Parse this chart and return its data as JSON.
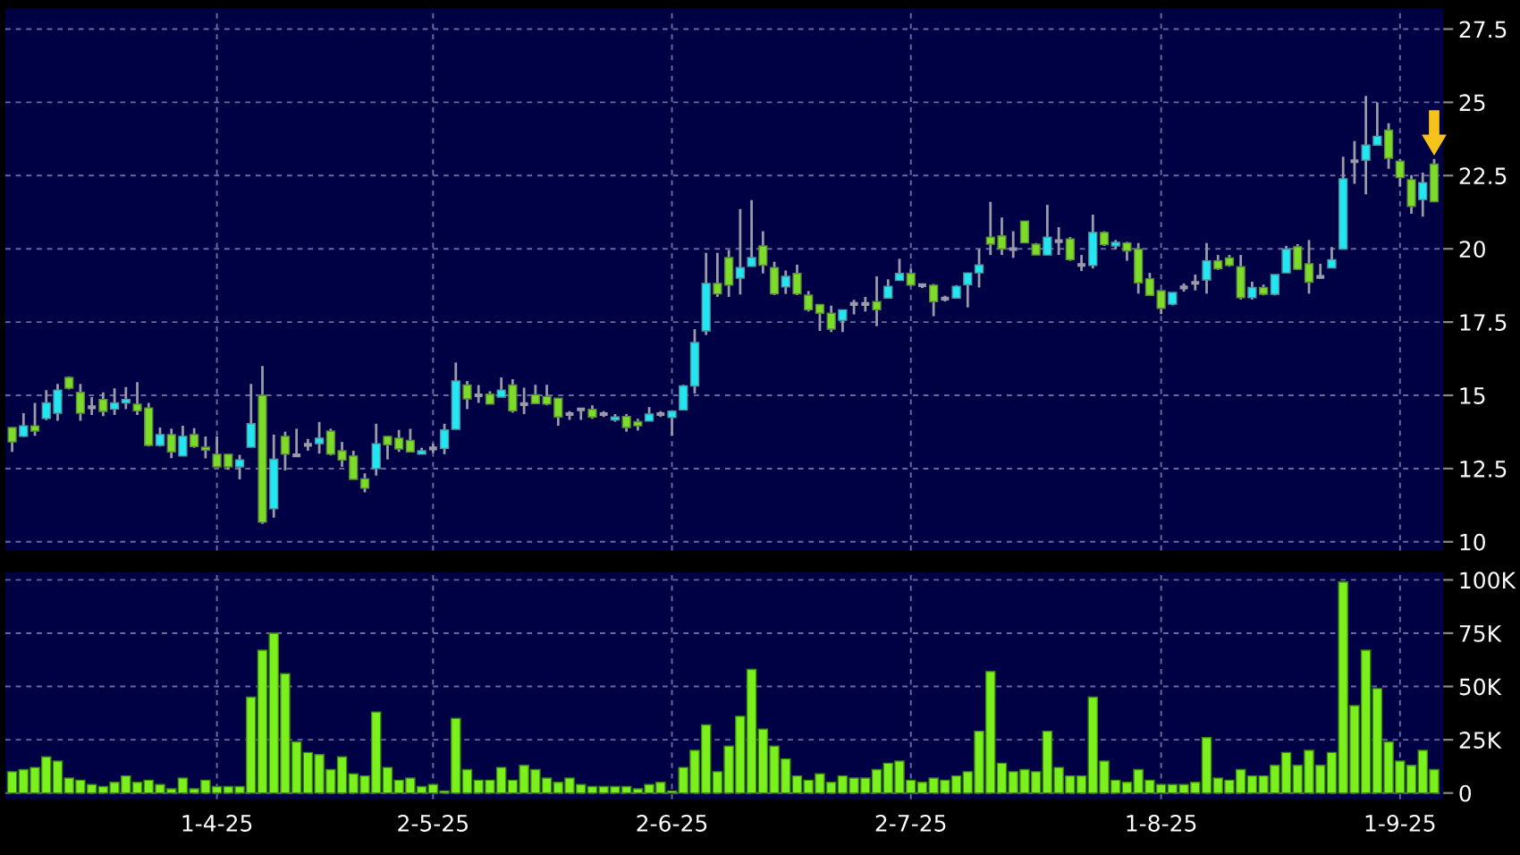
{
  "chart_data": [
    {
      "type": "candlestick",
      "categories": [
        null,
        null,
        null,
        null,
        null,
        null,
        null,
        null,
        null,
        null,
        null,
        null,
        null,
        null,
        null,
        null,
        null,
        null,
        null,
        null,
        null,
        null,
        null,
        null,
        null,
        null,
        null,
        null,
        null,
        null,
        null,
        null,
        null,
        null,
        null,
        null,
        null,
        null,
        null,
        null,
        null,
        null,
        null,
        null,
        null,
        null,
        null,
        null,
        null,
        null,
        null,
        null,
        null,
        null,
        null,
        null,
        null,
        null,
        null,
        null,
        null,
        null,
        null,
        null,
        null,
        null,
        null,
        null,
        null,
        null,
        null,
        null,
        null,
        null,
        null,
        null,
        null,
        null,
        null,
        null,
        null,
        null,
        null,
        null,
        null,
        null,
        null,
        null,
        null,
        null,
        null,
        null,
        null,
        null,
        null,
        null,
        null,
        null,
        null,
        null,
        null,
        null,
        null,
        null,
        null,
        null,
        null,
        null,
        null,
        null,
        null,
        null,
        null,
        null,
        null,
        null,
        null,
        null,
        null,
        null,
        null,
        null,
        null,
        null,
        null,
        null
      ],
      "ohlc": [
        [
          13.9,
          13.9,
          13.07,
          13.41
        ],
        [
          13.6,
          14.39,
          13.58,
          13.96
        ],
        [
          13.96,
          14.74,
          13.62,
          13.78
        ],
        [
          14.21,
          15.18,
          14.15,
          14.74
        ],
        [
          14.39,
          15.39,
          14.13,
          15.18
        ],
        [
          15.61,
          15.65,
          15.2,
          15.24
        ],
        [
          15.1,
          15.39,
          14.13,
          14.39
        ],
        [
          14.59,
          14.94,
          14.33,
          14.59
        ],
        [
          14.86,
          15.1,
          14.29,
          14.45
        ],
        [
          14.53,
          15.24,
          14.33,
          14.74
        ],
        [
          14.74,
          15.28,
          14.53,
          14.86
        ],
        [
          14.7,
          15.45,
          14.33,
          14.47
        ],
        [
          14.57,
          14.74,
          13.25,
          13.29
        ],
        [
          13.29,
          13.9,
          13.25,
          13.66
        ],
        [
          13.66,
          13.86,
          12.86,
          13.07
        ],
        [
          12.93,
          13.96,
          12.93,
          13.6
        ],
        [
          13.66,
          13.88,
          13.21,
          13.25
        ],
        [
          13.23,
          13.6,
          12.85,
          13.13
        ],
        [
          12.99,
          13.6,
          12.54,
          12.56
        ],
        [
          12.99,
          12.99,
          12.46,
          12.56
        ],
        [
          12.56,
          12.97,
          12.13,
          12.8
        ],
        [
          13.23,
          15.39,
          13.23,
          14.03
        ],
        [
          15.0,
          16.0,
          10.61,
          10.67
        ],
        [
          11.13,
          13.66,
          10.83,
          12.82
        ],
        [
          13.6,
          13.76,
          12.44,
          12.99
        ],
        [
          12.95,
          13.86,
          12.91,
          12.95
        ],
        [
          13.31,
          13.51,
          13.11,
          13.31
        ],
        [
          13.35,
          14.09,
          13.01,
          13.54
        ],
        [
          13.78,
          13.86,
          12.95,
          12.99
        ],
        [
          13.11,
          13.41,
          12.56,
          12.79
        ],
        [
          12.93,
          13.11,
          12.13,
          12.13
        ],
        [
          12.15,
          12.34,
          11.69,
          11.83
        ],
        [
          12.5,
          14.03,
          12.26,
          13.35
        ],
        [
          13.6,
          13.6,
          12.81,
          13.31
        ],
        [
          13.54,
          13.82,
          13.07,
          13.17
        ],
        [
          13.46,
          13.86,
          13.07,
          13.07
        ],
        [
          12.99,
          13.21,
          12.99,
          13.11
        ],
        [
          13.19,
          13.35,
          13.03,
          13.19
        ],
        [
          13.19,
          14.03,
          12.99,
          13.82
        ],
        [
          13.84,
          16.12,
          13.84,
          15.49
        ],
        [
          15.35,
          15.49,
          14.53,
          14.88
        ],
        [
          15.0,
          15.35,
          14.74,
          15.0
        ],
        [
          15.04,
          15.14,
          14.7,
          14.7
        ],
        [
          14.94,
          15.61,
          14.94,
          15.18
        ],
        [
          15.35,
          15.55,
          14.41,
          14.47
        ],
        [
          14.7,
          15.26,
          14.36,
          14.7
        ],
        [
          15.02,
          15.36,
          14.72,
          14.72
        ],
        [
          14.96,
          15.36,
          14.66,
          14.7
        ],
        [
          14.9,
          14.9,
          13.96,
          14.26
        ],
        [
          14.36,
          14.46,
          14.16,
          14.36
        ],
        [
          14.52,
          14.56,
          14.16,
          14.52
        ],
        [
          14.52,
          14.66,
          14.2,
          14.26
        ],
        [
          14.36,
          14.46,
          14.26,
          14.36
        ],
        [
          14.16,
          14.36,
          14.1,
          14.26
        ],
        [
          14.28,
          14.36,
          13.76,
          13.9
        ],
        [
          14.1,
          14.2,
          13.8,
          13.96
        ],
        [
          14.12,
          14.6,
          14.12,
          14.36
        ],
        [
          14.36,
          14.46,
          14.26,
          14.36
        ],
        [
          14.24,
          14.46,
          13.62,
          14.46
        ],
        [
          14.5,
          15.36,
          14.5,
          15.32
        ],
        [
          15.32,
          17.26,
          15.06,
          16.8
        ],
        [
          17.2,
          19.86,
          17.06,
          18.82
        ],
        [
          18.82,
          19.86,
          18.36,
          18.46
        ],
        [
          19.7,
          19.96,
          18.36,
          18.76
        ],
        [
          19.0,
          21.36,
          18.44,
          19.36
        ],
        [
          19.4,
          21.66,
          19.4,
          19.7
        ],
        [
          20.1,
          20.6,
          19.16,
          19.44
        ],
        [
          19.36,
          19.56,
          18.42,
          18.46
        ],
        [
          18.7,
          19.26,
          18.46,
          19.06
        ],
        [
          19.16,
          19.46,
          18.42,
          18.46
        ],
        [
          18.42,
          18.56,
          17.86,
          17.92
        ],
        [
          18.1,
          18.1,
          17.2,
          17.8
        ],
        [
          17.8,
          18.06,
          17.16,
          17.26
        ],
        [
          17.56,
          17.92,
          17.16,
          17.92
        ],
        [
          18.12,
          18.26,
          17.76,
          18.12
        ],
        [
          18.12,
          18.36,
          17.86,
          18.12
        ],
        [
          18.2,
          19.06,
          17.36,
          17.92
        ],
        [
          18.32,
          18.96,
          18.32,
          18.72
        ],
        [
          18.92,
          19.66,
          18.92,
          19.16
        ],
        [
          19.16,
          19.32,
          18.72,
          18.76
        ],
        [
          18.76,
          18.8,
          18.66,
          18.76
        ],
        [
          18.76,
          18.8,
          17.7,
          18.2
        ],
        [
          18.3,
          18.4,
          18.2,
          18.3
        ],
        [
          18.32,
          18.76,
          18.3,
          18.72
        ],
        [
          18.78,
          19.18,
          18.0,
          19.18
        ],
        [
          19.18,
          19.99,
          18.68,
          19.45
        ],
        [
          20.4,
          21.6,
          19.79,
          20.16
        ],
        [
          20.44,
          21.07,
          19.79,
          19.99
        ],
        [
          19.99,
          20.6,
          19.69,
          19.99
        ],
        [
          20.95,
          20.95,
          20.2,
          20.2
        ],
        [
          20.16,
          20.2,
          19.79,
          19.79
        ],
        [
          19.79,
          21.5,
          19.79,
          20.4
        ],
        [
          20.26,
          20.74,
          19.79,
          20.26
        ],
        [
          20.34,
          20.4,
          19.59,
          19.63
        ],
        [
          19.45,
          19.79,
          19.24,
          19.45
        ],
        [
          19.43,
          21.17,
          19.33,
          20.56
        ],
        [
          20.56,
          20.6,
          20.1,
          20.14
        ],
        [
          20.1,
          20.3,
          19.99,
          20.22
        ],
        [
          20.2,
          20.24,
          19.59,
          19.93
        ],
        [
          19.99,
          20.2,
          18.47,
          18.84
        ],
        [
          18.98,
          19.18,
          18.41,
          18.41
        ],
        [
          18.57,
          18.57,
          17.77,
          17.97
        ],
        [
          18.11,
          18.51,
          18.07,
          18.51
        ],
        [
          18.68,
          18.82,
          18.54,
          18.68
        ],
        [
          18.84,
          19.12,
          18.58,
          18.84
        ],
        [
          18.94,
          20.2,
          18.47,
          19.59
        ],
        [
          19.59,
          19.79,
          19.28,
          19.32
        ],
        [
          19.69,
          19.79,
          19.39,
          19.43
        ],
        [
          19.39,
          19.79,
          18.27,
          18.33
        ],
        [
          18.33,
          18.88,
          18.27,
          18.68
        ],
        [
          18.68,
          18.78,
          18.41,
          18.45
        ],
        [
          18.45,
          19.12,
          18.41,
          19.12
        ],
        [
          19.18,
          20.1,
          19.18,
          19.99
        ],
        [
          20.07,
          20.16,
          19.28,
          19.3
        ],
        [
          19.49,
          20.3,
          18.47,
          18.86
        ],
        [
          19.04,
          19.49,
          18.98,
          19.04
        ],
        [
          19.35,
          20.06,
          19.35,
          19.63
        ],
        [
          19.99,
          23.14,
          19.99,
          22.39
        ],
        [
          22.99,
          23.68,
          22.22,
          22.99
        ],
        [
          23.03,
          25.22,
          21.86,
          23.54
        ],
        [
          23.54,
          25.0,
          23.54,
          23.84
        ],
        [
          24.05,
          24.29,
          22.73,
          23.09
        ],
        [
          22.99,
          23.07,
          22.12,
          22.43
        ],
        [
          22.36,
          22.52,
          21.2,
          21.45
        ],
        [
          21.68,
          22.6,
          21.1,
          22.26
        ],
        [
          22.89,
          23.07,
          21.61,
          21.61
        ]
      ],
      "ylim": [
        9.7,
        28.2
      ],
      "yticks": [
        10,
        12.5,
        15,
        17.5,
        20,
        22.5,
        25,
        27.5
      ],
      "grid": true,
      "tick_labels": "y"
    },
    {
      "type": "bar",
      "categories": [
        null,
        null,
        null,
        null,
        null,
        null,
        null,
        null,
        null,
        null,
        null,
        null,
        null,
        null,
        null,
        null,
        null,
        null,
        "1-4-25",
        null,
        null,
        null,
        null,
        null,
        null,
        null,
        null,
        null,
        null,
        null,
        null,
        null,
        null,
        null,
        null,
        null,
        null,
        "2-5-25",
        null,
        null,
        null,
        null,
        null,
        null,
        null,
        null,
        null,
        null,
        null,
        null,
        null,
        null,
        null,
        null,
        null,
        null,
        null,
        null,
        "2-6-25",
        null,
        null,
        null,
        null,
        null,
        null,
        null,
        null,
        null,
        null,
        null,
        null,
        null,
        null,
        null,
        null,
        null,
        null,
        null,
        null,
        "2-7-25",
        null,
        null,
        null,
        null,
        null,
        null,
        null,
        null,
        null,
        null,
        null,
        null,
        null,
        null,
        null,
        null,
        null,
        null,
        null,
        null,
        null,
        "1-8-25",
        null,
        null,
        null,
        null,
        null,
        null,
        null,
        null,
        null,
        null,
        null,
        null,
        null,
        null,
        null,
        null,
        null,
        null,
        null,
        null,
        "1-9-25",
        null,
        null,
        null
      ],
      "values": [
        10,
        11,
        12,
        17,
        15,
        7,
        6,
        4,
        3,
        5,
        8,
        5,
        6,
        4,
        2,
        7,
        2,
        6,
        3,
        3,
        3,
        45,
        67,
        75,
        56,
        24,
        19,
        18,
        11,
        17,
        9,
        8,
        38,
        12,
        6,
        7,
        3,
        4,
        1,
        35,
        11,
        6,
        6,
        12,
        6,
        13,
        11,
        7,
        5,
        7,
        4,
        3,
        3,
        3,
        3,
        2,
        4,
        5,
        1,
        12,
        20,
        32,
        10,
        22,
        36,
        58,
        30,
        22,
        16,
        8,
        6,
        9,
        5,
        8,
        7,
        7,
        11,
        14,
        15,
        6,
        5,
        7,
        6,
        8,
        10,
        29,
        57,
        14,
        10,
        11,
        10,
        29,
        12,
        8,
        8,
        45,
        15,
        6,
        5,
        11,
        6,
        4,
        4,
        4,
        5,
        26,
        7,
        6,
        11,
        8,
        8,
        13,
        19,
        13,
        20,
        13,
        19,
        99,
        41,
        67,
        49,
        24,
        15,
        13,
        20,
        11
      ],
      "color": "#7cf01c",
      "ylim": [
        -3,
        103.5
      ],
      "yticks": [
        {
          "value": 0,
          "label": "0"
        },
        {
          "value": 25,
          "label": "25K"
        },
        {
          "value": 50,
          "label": "50K"
        },
        {
          "value": 75,
          "label": "75K"
        },
        {
          "value": 100,
          "label": "100K"
        }
      ],
      "grid": true
    }
  ]
}
